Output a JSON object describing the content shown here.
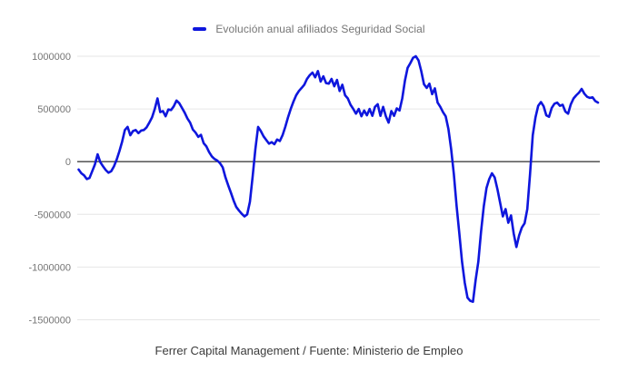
{
  "legend": {
    "label": "Evolución anual afiliados Seguridad Social"
  },
  "caption": "Ferrer Capital Management / Fuente: Ministerio de Empleo",
  "colors": {
    "line": "#0e16dd",
    "grid": "#e6e6e6",
    "zero_line": "#424242",
    "tick_text": "#757575",
    "legend_text": "#757575",
    "caption_text": "#3c3c3c",
    "background": "#ffffff"
  },
  "chart_data": {
    "type": "line",
    "title": "",
    "legend_position": "top",
    "grid": true,
    "x_axis_labels_visible": false,
    "ylabel": "",
    "xlabel": "",
    "ylim": [
      -1500000,
      1000000
    ],
    "y_ticks": [
      1000000,
      500000,
      0,
      -500000,
      -1000000,
      -1500000
    ],
    "series": [
      {
        "name": "Evolución anual afiliados Seguridad Social",
        "values": [
          -75000,
          -110000,
          -130000,
          -165000,
          -155000,
          -90000,
          -25000,
          70000,
          -5000,
          -45000,
          -80000,
          -105000,
          -90000,
          -45000,
          20000,
          100000,
          190000,
          300000,
          330000,
          250000,
          290000,
          300000,
          270000,
          295000,
          300000,
          325000,
          370000,
          420000,
          500000,
          600000,
          470000,
          480000,
          430000,
          495000,
          490000,
          525000,
          580000,
          555000,
          510000,
          465000,
          410000,
          370000,
          305000,
          275000,
          235000,
          255000,
          175000,
          145000,
          90000,
          50000,
          25000,
          10000,
          -15000,
          -55000,
          -150000,
          -225000,
          -295000,
          -370000,
          -430000,
          -465000,
          -495000,
          -520000,
          -500000,
          -380000,
          -140000,
          120000,
          330000,
          290000,
          240000,
          205000,
          170000,
          185000,
          165000,
          210000,
          195000,
          250000,
          330000,
          420000,
          500000,
          570000,
          630000,
          670000,
          700000,
          730000,
          785000,
          820000,
          845000,
          800000,
          860000,
          760000,
          810000,
          745000,
          740000,
          785000,
          715000,
          775000,
          670000,
          730000,
          630000,
          600000,
          540000,
          500000,
          455000,
          500000,
          430000,
          485000,
          440000,
          500000,
          435000,
          520000,
          545000,
          435000,
          520000,
          430000,
          370000,
          480000,
          435000,
          505000,
          485000,
          600000,
          770000,
          890000,
          935000,
          985000,
          1000000,
          960000,
          860000,
          735000,
          700000,
          740000,
          640000,
          695000,
          560000,
          520000,
          470000,
          430000,
          310000,
          120000,
          -120000,
          -420000,
          -680000,
          -950000,
          -1150000,
          -1290000,
          -1320000,
          -1330000,
          -1120000,
          -950000,
          -665000,
          -425000,
          -250000,
          -165000,
          -110000,
          -150000,
          -260000,
          -390000,
          -520000,
          -450000,
          -580000,
          -510000,
          -680000,
          -810000,
          -700000,
          -625000,
          -585000,
          -450000,
          -120000,
          250000,
          420000,
          530000,
          565000,
          525000,
          440000,
          425000,
          510000,
          550000,
          560000,
          530000,
          540000,
          475000,
          455000,
          545000,
          600000,
          630000,
          655000,
          690000,
          645000,
          615000,
          605000,
          610000,
          575000,
          560000
        ]
      }
    ]
  }
}
